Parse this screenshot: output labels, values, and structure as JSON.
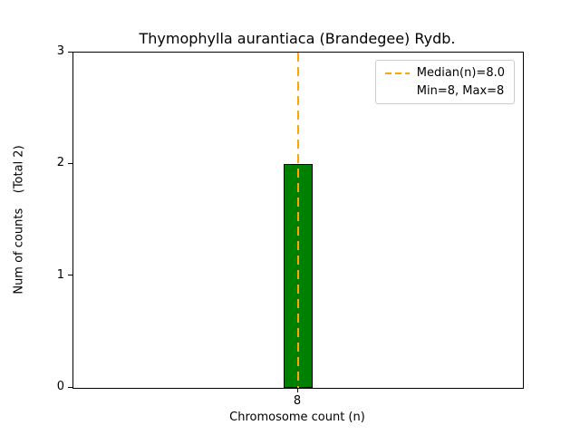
{
  "chart_data": {
    "type": "bar",
    "title": "Thymophylla aurantiaca (Brandegee) Rydb.",
    "xlabel": "Chromosome count (n)",
    "ylabel": "Num of counts    (Total 2)",
    "categories": [
      "8"
    ],
    "values": [
      2
    ],
    "total_count": 2,
    "ylim": [
      0,
      3
    ],
    "yticks": [
      0,
      1,
      2,
      3
    ],
    "grid": false,
    "bar_color": "#008000",
    "bar_edge_color": "#000000",
    "median_line": {
      "x_category": "8",
      "value": 8.0,
      "color": "#ffa500",
      "style": "dashed"
    },
    "legend": {
      "position": "top-right",
      "entries": [
        {
          "label": "Median(n)=8.0",
          "swatch": "dashed-line",
          "color": "#ffa500"
        },
        {
          "label": "Min=8, Max=8",
          "swatch": "none",
          "color": ""
        }
      ]
    }
  }
}
